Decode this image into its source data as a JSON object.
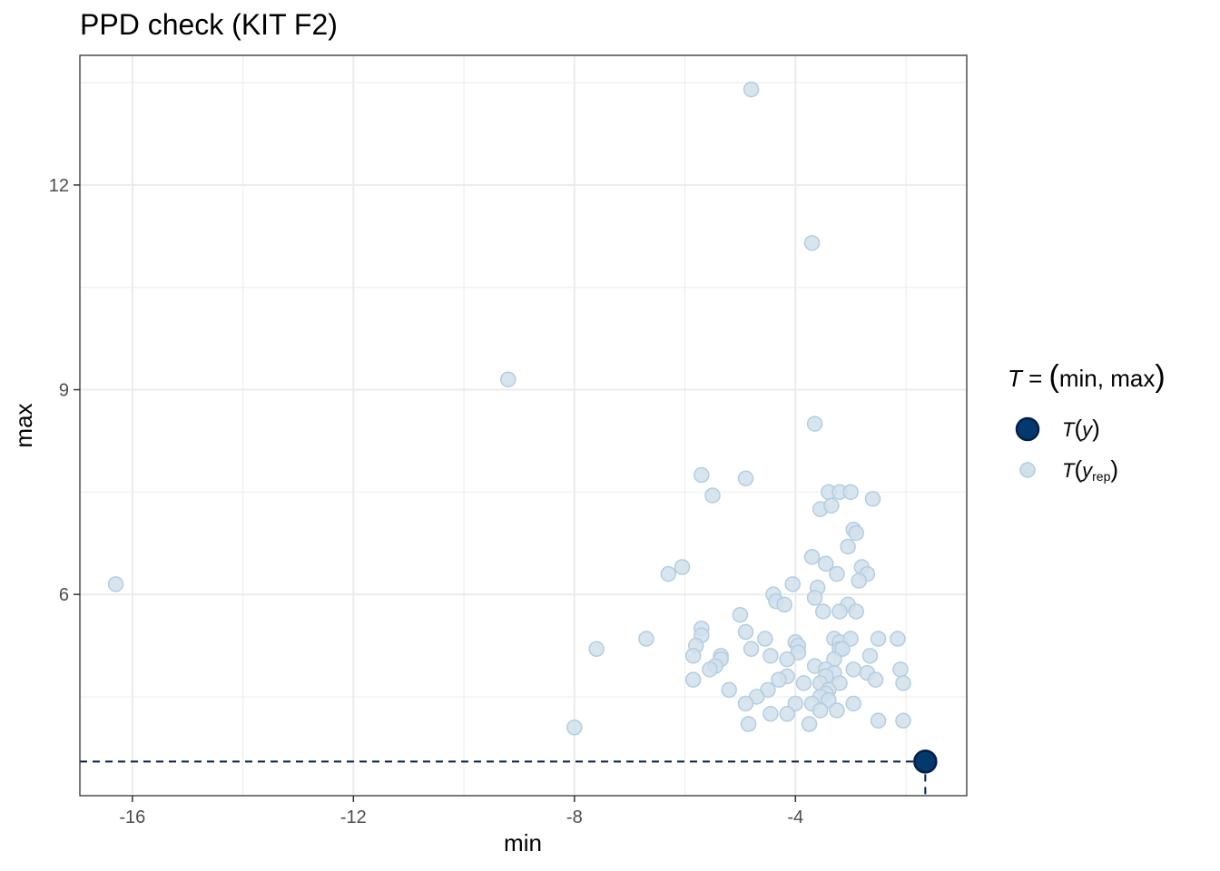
{
  "chart_data": {
    "type": "scatter",
    "title": "PPD check (KIT F2)",
    "xlabel": "min",
    "ylabel": "max",
    "xlim": [
      -16.95,
      -0.9
    ],
    "ylim": [
      3.05,
      13.9
    ],
    "xticks": [
      -16,
      -12,
      -8,
      -4
    ],
    "yticks": [
      6,
      9,
      12
    ],
    "x_tick_labels": [
      "-16",
      "-12",
      "-8",
      "-4"
    ],
    "y_tick_labels": [
      "6",
      "9",
      "12"
    ],
    "grid": true,
    "legend_placement": "right",
    "legend": {
      "title_T": "T",
      "title_eq": " = ",
      "title_open": "(",
      "title_text": "min, max",
      "title_close": ")",
      "items": [
        {
          "T": "T",
          "open": "(",
          "var": "y",
          "sub": "",
          "close": ")",
          "series": "observed"
        },
        {
          "T": "T",
          "open": "(",
          "var": "y",
          "sub": "rep",
          "close": ")",
          "series": "replicated"
        }
      ]
    },
    "colors": {
      "observed_fill": "#03396c",
      "observed_stroke": "#011f4b",
      "replicated_fill": "#d1e1ec",
      "replicated_stroke": "#b3cde0",
      "guide_line": "#011f4b",
      "grid": "#ebebeb",
      "panel_border": "#333333"
    },
    "observed": {
      "x": -1.65,
      "y": 3.55
    },
    "replicated": {
      "points": [
        [
          -4.8,
          13.4
        ],
        [
          -3.7,
          11.15
        ],
        [
          -9.2,
          9.15
        ],
        [
          -3.65,
          8.5
        ],
        [
          -16.3,
          6.15
        ],
        [
          -5.7,
          7.75
        ],
        [
          -4.9,
          7.7
        ],
        [
          -5.5,
          7.45
        ],
        [
          -3.4,
          7.5
        ],
        [
          -3.2,
          7.5
        ],
        [
          -3.0,
          7.5
        ],
        [
          -2.6,
          7.4
        ],
        [
          -3.55,
          7.25
        ],
        [
          -3.35,
          7.3
        ],
        [
          -2.95,
          6.95
        ],
        [
          -2.9,
          6.9
        ],
        [
          -3.05,
          6.7
        ],
        [
          -3.7,
          6.55
        ],
        [
          -3.45,
          6.45
        ],
        [
          -2.8,
          6.4
        ],
        [
          -2.7,
          6.3
        ],
        [
          -3.25,
          6.3
        ],
        [
          -6.3,
          6.3
        ],
        [
          -6.05,
          6.4
        ],
        [
          -2.85,
          6.2
        ],
        [
          -4.05,
          6.15
        ],
        [
          -3.6,
          6.1
        ],
        [
          -4.4,
          6.0
        ],
        [
          -3.65,
          5.95
        ],
        [
          -4.35,
          5.9
        ],
        [
          -4.2,
          5.85
        ],
        [
          -3.05,
          5.85
        ],
        [
          -3.5,
          5.75
        ],
        [
          -3.2,
          5.75
        ],
        [
          -2.9,
          5.75
        ],
        [
          -5.0,
          5.7
        ],
        [
          -5.7,
          5.5
        ],
        [
          -4.9,
          5.45
        ],
        [
          -5.7,
          5.4
        ],
        [
          -6.7,
          5.35
        ],
        [
          -4.55,
          5.35
        ],
        [
          -3.3,
          5.35
        ],
        [
          -3.2,
          5.3
        ],
        [
          -3.0,
          5.35
        ],
        [
          -2.5,
          5.35
        ],
        [
          -2.15,
          5.35
        ],
        [
          -4.0,
          5.3
        ],
        [
          -3.95,
          5.25
        ],
        [
          -3.2,
          5.2
        ],
        [
          -3.15,
          5.2
        ],
        [
          -7.6,
          5.2
        ],
        [
          -5.8,
          5.25
        ],
        [
          -4.8,
          5.2
        ],
        [
          -3.95,
          5.15
        ],
        [
          -4.45,
          5.1
        ],
        [
          -5.35,
          5.1
        ],
        [
          -5.35,
          5.05
        ],
        [
          -5.85,
          5.1
        ],
        [
          -4.15,
          5.05
        ],
        [
          -2.65,
          5.1
        ],
        [
          -3.3,
          5.05
        ],
        [
          -3.65,
          4.95
        ],
        [
          -5.45,
          4.95
        ],
        [
          -5.55,
          4.9
        ],
        [
          -3.45,
          4.9
        ],
        [
          -2.95,
          4.9
        ],
        [
          -2.7,
          4.85
        ],
        [
          -2.1,
          4.9
        ],
        [
          -3.3,
          4.85
        ],
        [
          -3.45,
          4.8
        ],
        [
          -4.15,
          4.8
        ],
        [
          -4.3,
          4.75
        ],
        [
          -5.85,
          4.75
        ],
        [
          -2.55,
          4.75
        ],
        [
          -3.2,
          4.7
        ],
        [
          -3.55,
          4.7
        ],
        [
          -3.85,
          4.7
        ],
        [
          -2.05,
          4.7
        ],
        [
          -3.4,
          4.6
        ],
        [
          -4.5,
          4.6
        ],
        [
          -5.2,
          4.6
        ],
        [
          -3.45,
          4.55
        ],
        [
          -3.55,
          4.5
        ],
        [
          -4.7,
          4.5
        ],
        [
          -4.9,
          4.4
        ],
        [
          -4.0,
          4.4
        ],
        [
          -3.7,
          4.4
        ],
        [
          -3.4,
          4.45
        ],
        [
          -2.95,
          4.4
        ],
        [
          -3.25,
          4.3
        ],
        [
          -3.55,
          4.3
        ],
        [
          -4.15,
          4.25
        ],
        [
          -4.45,
          4.25
        ],
        [
          -2.5,
          4.15
        ],
        [
          -2.05,
          4.15
        ],
        [
          -3.75,
          4.1
        ],
        [
          -4.85,
          4.1
        ],
        [
          -8.0,
          4.05
        ]
      ]
    }
  }
}
